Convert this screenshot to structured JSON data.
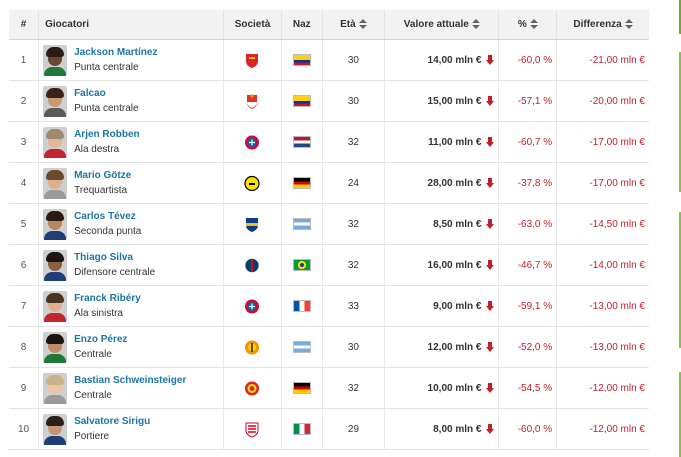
{
  "table": {
    "headers": {
      "num": "#",
      "player": "Giocatori",
      "club": "Società",
      "nat": "Naz",
      "age": "Età",
      "value": "Valore attuale",
      "pct": "%",
      "diff": "Differenza"
    },
    "rows": [
      {
        "num": "1",
        "name": "Jackson Martínez",
        "position": "Punta centrale",
        "club_icon": "club-crest-icon",
        "nationality_icon": "flag-colombia-icon",
        "age": "30",
        "value": "14,00 mln €",
        "pct": "-60,0 %",
        "diff": "-21,00 mln €"
      },
      {
        "num": "2",
        "name": "Falcao",
        "position": "Punta centrale",
        "club_icon": "club-crest-icon",
        "nationality_icon": "flag-colombia-icon",
        "age": "30",
        "value": "15,00 mln €",
        "pct": "-57,1 %",
        "diff": "-20,00 mln €"
      },
      {
        "num": "3",
        "name": "Arjen Robben",
        "position": "Ala destra",
        "club_icon": "club-crest-icon",
        "nationality_icon": "flag-netherlands-icon",
        "age": "32",
        "value": "11,00 mln €",
        "pct": "-60,7 %",
        "diff": "-17,00 mln €"
      },
      {
        "num": "4",
        "name": "Mario Götze",
        "position": "Trequartista",
        "club_icon": "club-crest-icon",
        "nationality_icon": "flag-germany-icon",
        "age": "24",
        "value": "28,00 mln €",
        "pct": "-37,8 %",
        "diff": "-17,00 mln €"
      },
      {
        "num": "5",
        "name": "Carlos Tévez",
        "position": "Seconda punta",
        "club_icon": "club-crest-icon",
        "nationality_icon": "flag-argentina-icon",
        "age": "32",
        "value": "8,50 mln €",
        "pct": "-63,0 %",
        "diff": "-14,50 mln €"
      },
      {
        "num": "6",
        "name": "Thiago Silva",
        "position": "Difensore centrale",
        "club_icon": "club-crest-icon",
        "nationality_icon": "flag-brazil-icon",
        "age": "32",
        "value": "16,00 mln €",
        "pct": "-46,7 %",
        "diff": "-14,00 mln €"
      },
      {
        "num": "7",
        "name": "Franck Ribéry",
        "position": "Ala sinistra",
        "club_icon": "club-crest-icon",
        "nationality_icon": "flag-france-icon",
        "age": "33",
        "value": "9,00 mln €",
        "pct": "-59,1 %",
        "diff": "-13,00 mln €"
      },
      {
        "num": "8",
        "name": "Enzo Pérez",
        "position": "Centrale",
        "club_icon": "club-crest-icon",
        "nationality_icon": "flag-argentina-icon",
        "age": "30",
        "value": "12,00 mln €",
        "pct": "-52,0 %",
        "diff": "-13,00 mln €"
      },
      {
        "num": "9",
        "name": "Bastian Schweinsteiger",
        "position": "Centrale",
        "club_icon": "club-crest-icon",
        "nationality_icon": "flag-germany-icon",
        "age": "32",
        "value": "10,00 mln €",
        "pct": "-54,5 %",
        "diff": "-12,00 mln €"
      },
      {
        "num": "10",
        "name": "Salvatore Sirigu",
        "position": "Portiere",
        "club_icon": "club-crest-icon",
        "nationality_icon": "flag-italy-icon",
        "age": "29",
        "value": "8,00 mln €",
        "pct": "-60,0 %",
        "diff": "-12,00 mln €"
      }
    ]
  },
  "colors": {
    "link": "#1d75a3",
    "negative": "#c0202b",
    "header_bg": "#f2f2f2",
    "accent_green": "#6ab02b"
  }
}
